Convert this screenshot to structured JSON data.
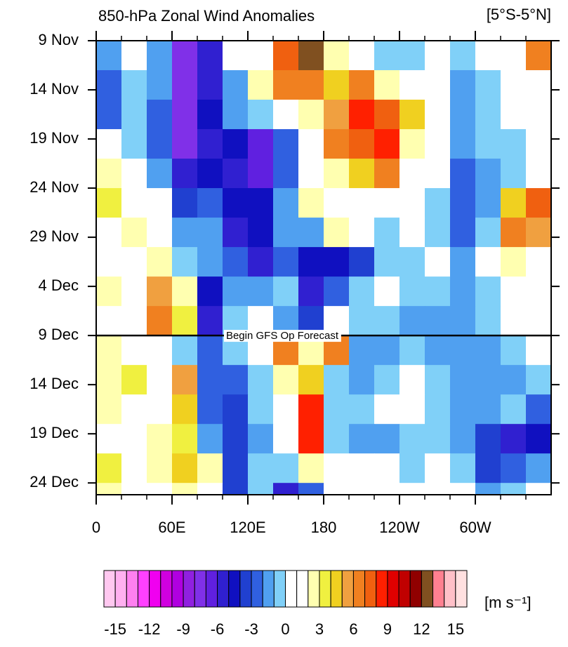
{
  "chart_data": {
    "type": "heatmap",
    "title": "850-hPa Zonal Wind Anomalies",
    "subtitle": "[5°S-5°N]",
    "annotation": "Begin GFS Op Forecast",
    "forecast_start": 30,
    "x": [
      10,
      30,
      50,
      70,
      90,
      110,
      130,
      150,
      170,
      190,
      210,
      230,
      250,
      270,
      290,
      310,
      330,
      350
    ],
    "y": [
      1.5,
      4.5,
      7.5,
      10.5,
      13.5,
      16.5,
      19.5,
      22.5,
      25.5,
      28.5,
      31.5,
      34.5,
      37.5,
      40.5,
      43.5,
      46.5
    ],
    "values": [
      [
        -2,
        0,
        -2,
        -8,
        -6,
        1,
        0,
        7,
        12,
        2,
        0,
        -1,
        -1,
        0,
        -1,
        0,
        1,
        6
      ],
      [
        -3,
        -1,
        -2,
        -8,
        -6,
        -2,
        2,
        6,
        6,
        4,
        6,
        2,
        0,
        0,
        -2,
        -1,
        0,
        1
      ],
      [
        -3,
        -1,
        -3,
        -8,
        -5,
        -2,
        -1,
        1,
        2,
        5,
        8,
        7,
        4,
        0,
        -2,
        -1,
        0,
        0
      ],
      [
        0,
        -1,
        -3,
        -8,
        -6,
        -5,
        -7,
        -3,
        1,
        6,
        7,
        8,
        2,
        0,
        -2,
        -1,
        -1,
        0
      ],
      [
        2,
        0,
        -2,
        -6,
        -5,
        -6,
        -7,
        -3,
        1,
        2,
        4,
        6,
        1,
        0,
        -3,
        -2,
        -1,
        1
      ],
      [
        3,
        1,
        0,
        -4,
        -3,
        -5,
        -5,
        -2,
        2,
        1,
        1,
        0,
        0,
        -1,
        -3,
        -2,
        4,
        7
      ],
      [
        1,
        2,
        0,
        -2,
        -2,
        -6,
        -5,
        -2,
        -2,
        2,
        0,
        -1,
        0,
        -1,
        -3,
        -1,
        6,
        5
      ],
      [
        1,
        1,
        2,
        -1,
        -2,
        -3,
        -6,
        -3,
        -5,
        -5,
        -4,
        -1,
        -1,
        0,
        -2,
        0,
        2,
        1
      ],
      [
        2,
        1,
        5,
        2,
        -5,
        -2,
        -2,
        -1,
        -6,
        -3,
        -1,
        0,
        -1,
        -1,
        -2,
        -1,
        0,
        0
      ],
      [
        0,
        1,
        6,
        3,
        -6,
        -1,
        0,
        -2,
        -4,
        0,
        -1,
        -1,
        -2,
        -2,
        -2,
        -1,
        0,
        0
      ],
      [
        2,
        1,
        0,
        -1,
        -3,
        -1,
        1,
        6,
        2,
        6,
        -2,
        -2,
        -1,
        -2,
        -2,
        -2,
        -1,
        0
      ],
      [
        2,
        3,
        1,
        5,
        -3,
        -3,
        -1,
        2,
        4,
        -1,
        -2,
        -1,
        0,
        -1,
        -2,
        -2,
        -2,
        -1
      ],
      [
        2,
        1,
        1,
        4,
        -3,
        -4,
        -1,
        1,
        8,
        -1,
        -1,
        1,
        0,
        -1,
        -2,
        -2,
        -1,
        -3
      ],
      [
        1,
        1,
        2,
        3,
        -2,
        -4,
        -2,
        1,
        8,
        -1,
        -2,
        -2,
        -1,
        -1,
        -2,
        -4,
        -6,
        -5
      ],
      [
        3,
        1,
        2,
        4,
        2,
        -4,
        -1,
        -1,
        2,
        1,
        0,
        1,
        -1,
        0,
        -1,
        -4,
        -3,
        -2
      ],
      [
        2,
        1,
        0,
        2,
        0,
        -4,
        -1,
        -6,
        -3,
        1,
        0,
        1,
        1,
        0,
        0,
        -2,
        -1,
        0
      ]
    ],
    "xlim": [
      0,
      360
    ],
    "xticks": [
      0,
      {
        "value": 60,
        "label": "60E"
      },
      {
        "value": 120,
        "label": "120E"
      },
      180,
      {
        "value": 240,
        "label": "120W"
      },
      {
        "value": 300,
        "label": "60W"
      }
    ],
    "xminorticks": [
      20,
      40,
      80,
      100,
      140,
      160,
      200,
      220,
      260,
      280,
      320,
      340
    ],
    "ylim": [
      0,
      46.2
    ],
    "yticks": [
      {
        "value": 0,
        "label": "9 Nov"
      },
      {
        "value": 5,
        "label": "14 Nov"
      },
      {
        "value": 10,
        "label": "19 Nov"
      },
      {
        "value": 15,
        "label": "24 Nov"
      },
      {
        "value": 20,
        "label": "29 Nov"
      },
      {
        "value": 25,
        "label": "4 Dec"
      },
      {
        "value": 30,
        "label": "9 Dec"
      },
      {
        "value": 35,
        "label": "14 Dec"
      },
      {
        "value": 40,
        "label": "19 Dec"
      },
      {
        "value": 45,
        "label": "24 Dec"
      }
    ],
    "colorbar": {
      "range": [
        -16,
        16
      ],
      "ticks": [
        -15,
        -12,
        -9,
        -6,
        -3,
        0,
        3,
        6,
        9,
        12,
        15
      ],
      "units": "[m s⁻¹]",
      "colors": [
        "#ffc8f0",
        "#ffb0f0",
        "#ff80f0",
        "#ff40ff",
        "#f000f0",
        "#d000e0",
        "#b000e0",
        "#9020e0",
        "#8030e8",
        "#6020e0",
        "#3020d0",
        "#1010c0",
        "#2040d0",
        "#3060e0",
        "#50a0f0",
        "#80d0f8",
        "#ffffff",
        "#ffffff",
        "#ffffb0",
        "#f0f040",
        "#f0d020",
        "#f0a040",
        "#f08020",
        "#f06010",
        "#ff2000",
        "#e00000",
        "#c00000",
        "#900000",
        "#805020",
        "#ff8090",
        "#ffc0c8",
        "#ffe0e0"
      ]
    }
  }
}
